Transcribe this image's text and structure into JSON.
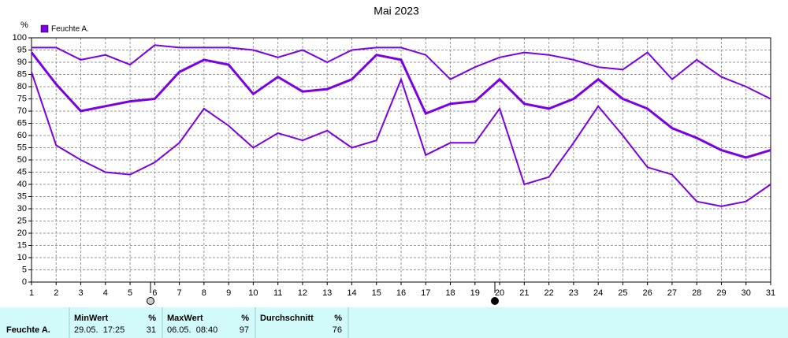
{
  "chart_data": {
    "type": "line",
    "title": "Mai 2023",
    "y_label": "%",
    "x": [
      1,
      2,
      3,
      4,
      5,
      6,
      7,
      8,
      9,
      10,
      11,
      12,
      13,
      14,
      15,
      16,
      17,
      18,
      19,
      20,
      21,
      22,
      23,
      24,
      25,
      26,
      27,
      28,
      29,
      30,
      31
    ],
    "series": [
      {
        "name": "Feuchte A.",
        "color": "#7b00e6",
        "max": [
          96,
          96,
          91,
          93,
          89,
          97,
          96,
          96,
          96,
          95,
          92,
          95,
          90,
          95,
          96,
          96,
          93,
          83,
          88,
          92,
          94,
          93,
          91,
          88,
          87,
          94,
          83,
          91,
          84,
          80,
          75
        ],
        "mean": [
          94,
          81,
          70,
          72,
          74,
          75,
          86,
          91,
          89,
          77,
          84,
          78,
          79,
          83,
          93,
          91,
          69,
          73,
          74,
          83,
          73,
          71,
          75,
          83,
          75,
          71,
          63,
          59,
          54,
          51,
          54
        ],
        "min": [
          86,
          56,
          50,
          45,
          44,
          49,
          57,
          71,
          64,
          55,
          61,
          58,
          62,
          55,
          58,
          83,
          52,
          57,
          57,
          71,
          40,
          43,
          57,
          72,
          60,
          47,
          44,
          33,
          31,
          33,
          40
        ]
      }
    ],
    "xlim": [
      1,
      31
    ],
    "xticks": [
      1,
      2,
      3,
      4,
      5,
      6,
      7,
      8,
      9,
      10,
      11,
      12,
      13,
      14,
      15,
      16,
      17,
      18,
      19,
      20,
      21,
      22,
      23,
      24,
      25,
      26,
      27,
      28,
      29,
      30,
      31
    ],
    "ylim": [
      0,
      100
    ],
    "yticks": [
      0,
      5,
      10,
      15,
      20,
      25,
      30,
      35,
      40,
      45,
      50,
      55,
      60,
      65,
      70,
      75,
      80,
      85,
      90,
      95,
      100
    ],
    "grid": true,
    "legend": "top-left"
  },
  "table": {
    "row_label": "Feuchte A.",
    "columns": [
      {
        "header": "MinWert",
        "unit": "%",
        "time": "29.05.  17:25",
        "value": 31
      },
      {
        "header": "MaxWert",
        "unit": "%",
        "time": "06.05.  08:40",
        "value": 97
      },
      {
        "header": "Durchschnitt",
        "unit": "%",
        "value": 76
      }
    ]
  }
}
